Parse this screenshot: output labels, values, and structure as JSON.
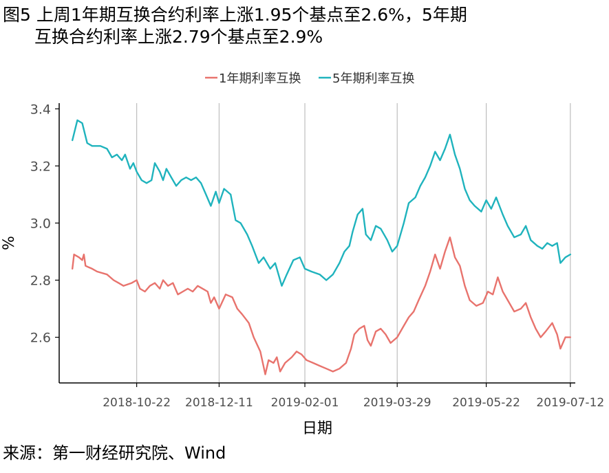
{
  "title": {
    "line1": "图5 上周1年期互换合约利率上涨1.95个基点至2.6%，5年期",
    "line2": "互换合约利率上涨2.79个基点至2.9%"
  },
  "source": "来源：第一财经研究院、Wind",
  "colors": {
    "series1": "#e8736d",
    "series2": "#1fb3bd",
    "grid": "#bdbdbd",
    "axis": "#000000",
    "tick_text": "#4d4d4d"
  },
  "chart_data": {
    "type": "line",
    "xlabel": "日期",
    "ylabel": "%",
    "x_range": [
      "2018-09-05",
      "2019-07-15"
    ],
    "ylim": [
      2.44,
      3.42
    ],
    "grid": "vertical",
    "legend_position": "top-center",
    "x_ticks": [
      "2018-10-22",
      "2018-12-11",
      "2019-02-01",
      "2019-03-29",
      "2019-05-22",
      "2019-07-12"
    ],
    "y_ticks": [
      2.6,
      2.8,
      3.0,
      3.2,
      3.4
    ],
    "series": [
      {
        "name": "1年期利率互换",
        "color": "#e8736d",
        "points": [
          [
            "2018-09-13",
            2.84
          ],
          [
            "2018-09-14",
            2.89
          ],
          [
            "2018-09-17",
            2.88
          ],
          [
            "2018-09-19",
            2.87
          ],
          [
            "2018-09-20",
            2.89
          ],
          [
            "2018-09-21",
            2.85
          ],
          [
            "2018-09-25",
            2.84
          ],
          [
            "2018-09-28",
            2.83
          ],
          [
            "2018-10-04",
            2.82
          ],
          [
            "2018-10-08",
            2.8
          ],
          [
            "2018-10-11",
            2.79
          ],
          [
            "2018-10-14",
            2.78
          ],
          [
            "2018-10-19",
            2.79
          ],
          [
            "2018-10-22",
            2.8
          ],
          [
            "2018-10-24",
            2.77
          ],
          [
            "2018-10-27",
            2.76
          ],
          [
            "2018-10-30",
            2.78
          ],
          [
            "2018-11-02",
            2.79
          ],
          [
            "2018-11-05",
            2.77
          ],
          [
            "2018-11-07",
            2.8
          ],
          [
            "2018-11-10",
            2.78
          ],
          [
            "2018-11-13",
            2.79
          ],
          [
            "2018-11-16",
            2.75
          ],
          [
            "2018-11-19",
            2.76
          ],
          [
            "2018-11-22",
            2.77
          ],
          [
            "2018-11-25",
            2.76
          ],
          [
            "2018-11-28",
            2.78
          ],
          [
            "2018-12-01",
            2.77
          ],
          [
            "2018-12-04",
            2.76
          ],
          [
            "2018-12-06",
            2.72
          ],
          [
            "2018-12-08",
            2.74
          ],
          [
            "2018-12-11",
            2.7
          ],
          [
            "2018-12-15",
            2.75
          ],
          [
            "2018-12-19",
            2.74
          ],
          [
            "2018-12-22",
            2.7
          ],
          [
            "2018-12-25",
            2.68
          ],
          [
            "2018-12-29",
            2.65
          ],
          [
            "2019-01-01",
            2.6
          ],
          [
            "2019-01-05",
            2.55
          ],
          [
            "2019-01-08",
            2.47
          ],
          [
            "2019-01-10",
            2.52
          ],
          [
            "2019-01-13",
            2.51
          ],
          [
            "2019-01-15",
            2.53
          ],
          [
            "2019-01-17",
            2.48
          ],
          [
            "2019-01-20",
            2.51
          ],
          [
            "2019-01-24",
            2.53
          ],
          [
            "2019-01-27",
            2.55
          ],
          [
            "2019-01-30",
            2.54
          ],
          [
            "2019-02-02",
            2.52
          ],
          [
            "2019-02-06",
            2.51
          ],
          [
            "2019-02-10",
            2.5
          ],
          [
            "2019-02-14",
            2.49
          ],
          [
            "2019-02-18",
            2.48
          ],
          [
            "2019-02-22",
            2.49
          ],
          [
            "2019-02-26",
            2.51
          ],
          [
            "2019-03-01",
            2.56
          ],
          [
            "2019-03-03",
            2.61
          ],
          [
            "2019-03-06",
            2.63
          ],
          [
            "2019-03-09",
            2.64
          ],
          [
            "2019-03-11",
            2.59
          ],
          [
            "2019-03-13",
            2.57
          ],
          [
            "2019-03-16",
            2.62
          ],
          [
            "2019-03-19",
            2.63
          ],
          [
            "2019-03-22",
            2.61
          ],
          [
            "2019-03-25",
            2.58
          ],
          [
            "2019-03-29",
            2.6
          ],
          [
            "2019-04-02",
            2.64
          ],
          [
            "2019-04-05",
            2.67
          ],
          [
            "2019-04-08",
            2.69
          ],
          [
            "2019-04-11",
            2.73
          ],
          [
            "2019-04-15",
            2.78
          ],
          [
            "2019-04-18",
            2.83
          ],
          [
            "2019-04-21",
            2.89
          ],
          [
            "2019-04-24",
            2.84
          ],
          [
            "2019-04-27",
            2.9
          ],
          [
            "2019-04-30",
            2.95
          ],
          [
            "2019-05-03",
            2.88
          ],
          [
            "2019-05-06",
            2.85
          ],
          [
            "2019-05-09",
            2.78
          ],
          [
            "2019-05-12",
            2.73
          ],
          [
            "2019-05-16",
            2.71
          ],
          [
            "2019-05-20",
            2.72
          ],
          [
            "2019-05-23",
            2.76
          ],
          [
            "2019-05-26",
            2.75
          ],
          [
            "2019-05-29",
            2.81
          ],
          [
            "2019-06-01",
            2.76
          ],
          [
            "2019-06-04",
            2.73
          ],
          [
            "2019-06-08",
            2.69
          ],
          [
            "2019-06-12",
            2.7
          ],
          [
            "2019-06-15",
            2.72
          ],
          [
            "2019-06-18",
            2.67
          ],
          [
            "2019-06-21",
            2.63
          ],
          [
            "2019-06-24",
            2.6
          ],
          [
            "2019-06-27",
            2.62
          ],
          [
            "2019-07-01",
            2.65
          ],
          [
            "2019-07-04",
            2.61
          ],
          [
            "2019-07-06",
            2.56
          ],
          [
            "2019-07-09",
            2.6
          ],
          [
            "2019-07-12",
            2.6
          ]
        ]
      },
      {
        "name": "5年期利率互换",
        "color": "#1fb3bd",
        "points": [
          [
            "2018-09-13",
            3.29
          ],
          [
            "2018-09-16",
            3.36
          ],
          [
            "2018-09-19",
            3.35
          ],
          [
            "2018-09-22",
            3.28
          ],
          [
            "2018-09-25",
            3.27
          ],
          [
            "2018-09-30",
            3.27
          ],
          [
            "2018-10-04",
            3.26
          ],
          [
            "2018-10-07",
            3.23
          ],
          [
            "2018-10-10",
            3.24
          ],
          [
            "2018-10-13",
            3.22
          ],
          [
            "2018-10-15",
            3.24
          ],
          [
            "2018-10-18",
            3.19
          ],
          [
            "2018-10-20",
            3.21
          ],
          [
            "2018-10-22",
            3.18
          ],
          [
            "2018-10-25",
            3.15
          ],
          [
            "2018-10-28",
            3.14
          ],
          [
            "2018-10-31",
            3.15
          ],
          [
            "2018-11-02",
            3.21
          ],
          [
            "2018-11-05",
            3.18
          ],
          [
            "2018-11-07",
            3.15
          ],
          [
            "2018-11-09",
            3.19
          ],
          [
            "2018-11-12",
            3.16
          ],
          [
            "2018-11-15",
            3.13
          ],
          [
            "2018-11-18",
            3.15
          ],
          [
            "2018-11-21",
            3.16
          ],
          [
            "2018-11-24",
            3.15
          ],
          [
            "2018-11-27",
            3.16
          ],
          [
            "2018-11-30",
            3.14
          ],
          [
            "2018-12-03",
            3.1
          ],
          [
            "2018-12-06",
            3.06
          ],
          [
            "2018-12-09",
            3.11
          ],
          [
            "2018-12-11",
            3.07
          ],
          [
            "2018-12-14",
            3.12
          ],
          [
            "2018-12-18",
            3.1
          ],
          [
            "2018-12-21",
            3.01
          ],
          [
            "2018-12-24",
            3.0
          ],
          [
            "2018-12-28",
            2.96
          ],
          [
            "2018-12-31",
            2.92
          ],
          [
            "2019-01-04",
            2.86
          ],
          [
            "2019-01-07",
            2.88
          ],
          [
            "2019-01-11",
            2.84
          ],
          [
            "2019-01-14",
            2.86
          ],
          [
            "2019-01-18",
            2.78
          ],
          [
            "2019-01-21",
            2.82
          ],
          [
            "2019-01-25",
            2.87
          ],
          [
            "2019-01-29",
            2.88
          ],
          [
            "2019-02-01",
            2.84
          ],
          [
            "2019-02-05",
            2.83
          ],
          [
            "2019-02-10",
            2.82
          ],
          [
            "2019-02-14",
            2.8
          ],
          [
            "2019-02-18",
            2.82
          ],
          [
            "2019-02-22",
            2.86
          ],
          [
            "2019-02-25",
            2.9
          ],
          [
            "2019-02-28",
            2.92
          ],
          [
            "2019-03-02",
            2.97
          ],
          [
            "2019-03-05",
            3.03
          ],
          [
            "2019-03-08",
            3.05
          ],
          [
            "2019-03-10",
            2.96
          ],
          [
            "2019-03-13",
            2.94
          ],
          [
            "2019-03-16",
            2.99
          ],
          [
            "2019-03-19",
            2.98
          ],
          [
            "2019-03-23",
            2.94
          ],
          [
            "2019-03-26",
            2.9
          ],
          [
            "2019-03-29",
            2.92
          ],
          [
            "2019-04-02",
            3.0
          ],
          [
            "2019-04-05",
            3.07
          ],
          [
            "2019-04-09",
            3.09
          ],
          [
            "2019-04-12",
            3.13
          ],
          [
            "2019-04-15",
            3.16
          ],
          [
            "2019-04-18",
            3.2
          ],
          [
            "2019-04-21",
            3.25
          ],
          [
            "2019-04-24",
            3.22
          ],
          [
            "2019-04-27",
            3.26
          ],
          [
            "2019-04-30",
            3.31
          ],
          [
            "2019-05-03",
            3.24
          ],
          [
            "2019-05-06",
            3.19
          ],
          [
            "2019-05-09",
            3.12
          ],
          [
            "2019-05-12",
            3.08
          ],
          [
            "2019-05-15",
            3.06
          ],
          [
            "2019-05-19",
            3.04
          ],
          [
            "2019-05-22",
            3.08
          ],
          [
            "2019-05-25",
            3.05
          ],
          [
            "2019-05-28",
            3.09
          ],
          [
            "2019-06-01",
            3.03
          ],
          [
            "2019-06-04",
            2.99
          ],
          [
            "2019-06-08",
            2.95
          ],
          [
            "2019-06-12",
            2.96
          ],
          [
            "2019-06-15",
            2.99
          ],
          [
            "2019-06-18",
            2.94
          ],
          [
            "2019-06-22",
            2.92
          ],
          [
            "2019-06-25",
            2.91
          ],
          [
            "2019-06-28",
            2.93
          ],
          [
            "2019-07-01",
            2.92
          ],
          [
            "2019-07-04",
            2.93
          ],
          [
            "2019-07-06",
            2.86
          ],
          [
            "2019-07-09",
            2.88
          ],
          [
            "2019-07-12",
            2.89
          ]
        ]
      }
    ]
  }
}
